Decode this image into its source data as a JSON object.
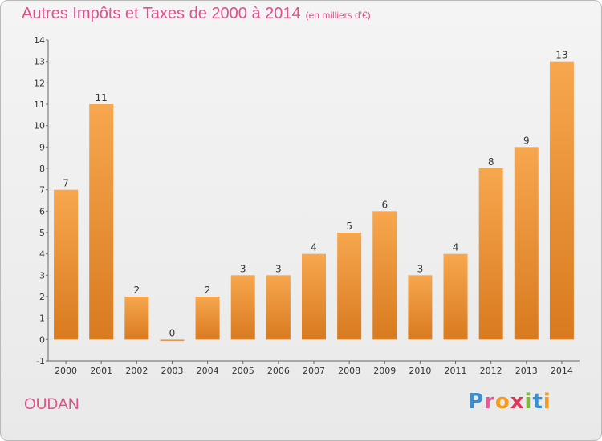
{
  "header": {
    "title": "Autres Impôts et Taxes de 2000 à 2014",
    "unit": "(en milliers d'€)"
  },
  "footer": {
    "city": "OUDAN",
    "brand": "Proxiti"
  },
  "colors": {
    "title": "#e0508a",
    "bar_light": "#f7a74f",
    "bar_dark": "#d97a1f"
  },
  "chart_data": {
    "type": "bar",
    "title": "Autres Impôts et Taxes de 2000 à 2014",
    "subtitle": "(en milliers d'€)",
    "xlabel": "",
    "ylabel": "",
    "categories": [
      "2000",
      "2001",
      "2002",
      "2003",
      "2004",
      "2005",
      "2006",
      "2007",
      "2008",
      "2009",
      "2010",
      "2011",
      "2012",
      "2013",
      "2014"
    ],
    "values": [
      7,
      11,
      2,
      0,
      2,
      3,
      3,
      4,
      5,
      6,
      3,
      4,
      8,
      9,
      13
    ],
    "ylim": [
      -1,
      14
    ],
    "yticks": [
      "-1",
      "0",
      "1",
      "2",
      "3",
      "4",
      "5",
      "6",
      "7",
      "8",
      "9",
      "10",
      "11",
      "12",
      "13",
      "14"
    ],
    "grid": false,
    "legend": "none"
  }
}
